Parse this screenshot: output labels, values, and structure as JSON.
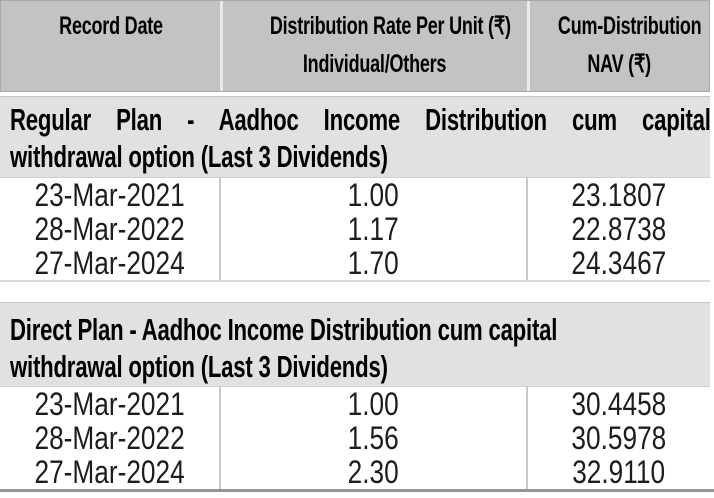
{
  "header": {
    "record_date": {
      "line1": "Record Date",
      "line2": ""
    },
    "distribution_rate": {
      "line1": "Distribution Rate Per Unit (₹)",
      "line2": "Individual/Others"
    },
    "cum_distribution": {
      "line1": "Cum-Distribution",
      "line2": "NAV (₹)"
    }
  },
  "sections": [
    {
      "name": "Regular Plan",
      "title_line1": "Regular Plan - Aadhoc Income Distribution cum capital",
      "title_line2": "withdrawal option (Last 3 Dividends)",
      "rows": [
        {
          "record_date": "23-Mar-2021",
          "rate_per_unit": "1.00",
          "cum_nav": "23.1807"
        },
        {
          "record_date": "28-Mar-2022",
          "rate_per_unit": "1.17",
          "cum_nav": "22.8738"
        },
        {
          "record_date": "27-Mar-2024",
          "rate_per_unit": "1.70",
          "cum_nav": "24.3467"
        }
      ]
    },
    {
      "name": "Direct Plan",
      "title_line1": "Direct Plan - Aadhoc Income Distribution cum capital",
      "title_line2": "withdrawal option (Last 3 Dividends)",
      "rows": [
        {
          "record_date": "23-Mar-2021",
          "rate_per_unit": "1.00",
          "cum_nav": "30.4458"
        },
        {
          "record_date": "28-Mar-2022",
          "rate_per_unit": "1.56",
          "cum_nav": "30.5978"
        },
        {
          "record_date": "27-Mar-2024",
          "rate_per_unit": "2.30",
          "cum_nav": "32.9110"
        }
      ]
    }
  ],
  "colors": {
    "header_bg": "#c3c3c3",
    "section_bg": "#e1e1e1",
    "divider_header": "#eaeaea",
    "divider_data": "#c9c9c9",
    "table_bottom_line": "#949494",
    "text": "#000000"
  }
}
